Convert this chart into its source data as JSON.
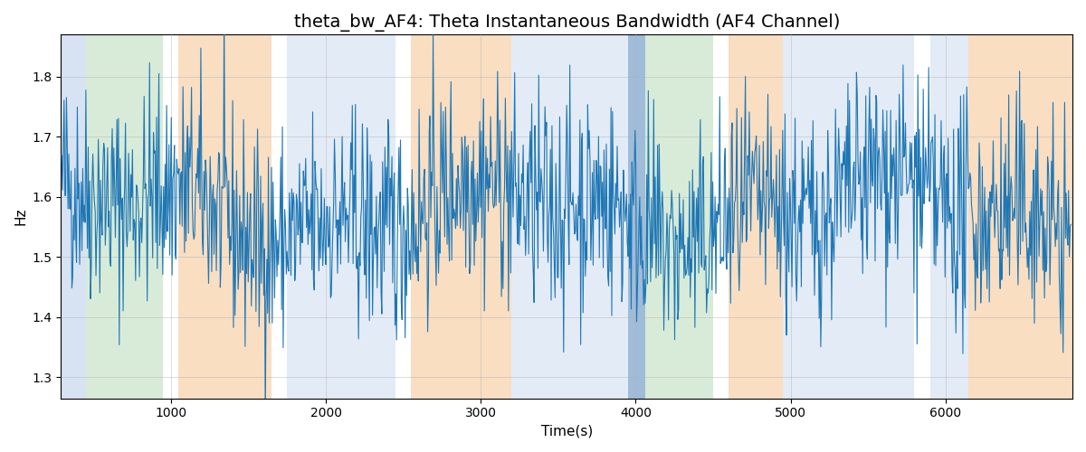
{
  "title": "theta_bw_AF4: Theta Instantaneous Bandwidth (AF4 Channel)",
  "xlabel": "Time(s)",
  "ylabel": "Hz",
  "xlim": [
    290,
    6820
  ],
  "ylim": [
    1.265,
    1.87
  ],
  "line_color": "#1f77b4",
  "line_width": 0.8,
  "bg_bands": [
    {
      "xmin": 290,
      "xmax": 450,
      "color": "#b0c8e8",
      "alpha": 0.5
    },
    {
      "xmin": 450,
      "xmax": 950,
      "color": "#b2d8b2",
      "alpha": 0.5
    },
    {
      "xmin": 1050,
      "xmax": 1650,
      "color": "#f5c89a",
      "alpha": 0.6
    },
    {
      "xmin": 1750,
      "xmax": 2450,
      "color": "#b0c8e8",
      "alpha": 0.35
    },
    {
      "xmin": 2550,
      "xmax": 3200,
      "color": "#f5c89a",
      "alpha": 0.6
    },
    {
      "xmin": 3200,
      "xmax": 3950,
      "color": "#b0c8e8",
      "alpha": 0.35
    },
    {
      "xmin": 3950,
      "xmax": 4060,
      "color": "#6090c0",
      "alpha": 0.6
    },
    {
      "xmin": 4060,
      "xmax": 4500,
      "color": "#b2d8b2",
      "alpha": 0.5
    },
    {
      "xmin": 4600,
      "xmax": 4950,
      "color": "#f5c89a",
      "alpha": 0.6
    },
    {
      "xmin": 4950,
      "xmax": 5800,
      "color": "#b0c8e8",
      "alpha": 0.35
    },
    {
      "xmin": 5900,
      "xmax": 6150,
      "color": "#b0c8e8",
      "alpha": 0.35
    },
    {
      "xmin": 6150,
      "xmax": 6820,
      "color": "#f5c89a",
      "alpha": 0.6
    }
  ],
  "seed": 42,
  "n_points": 1300,
  "t_start": 295,
  "t_end": 6810,
  "signal_mean": 1.575,
  "signal_std": 0.09,
  "title_fontsize": 14,
  "tick_fontsize": 10,
  "label_fontsize": 11,
  "grid_color": "#b0b0b0",
  "grid_alpha": 0.6,
  "yticks": [
    1.3,
    1.4,
    1.5,
    1.6,
    1.7,
    1.8
  ]
}
